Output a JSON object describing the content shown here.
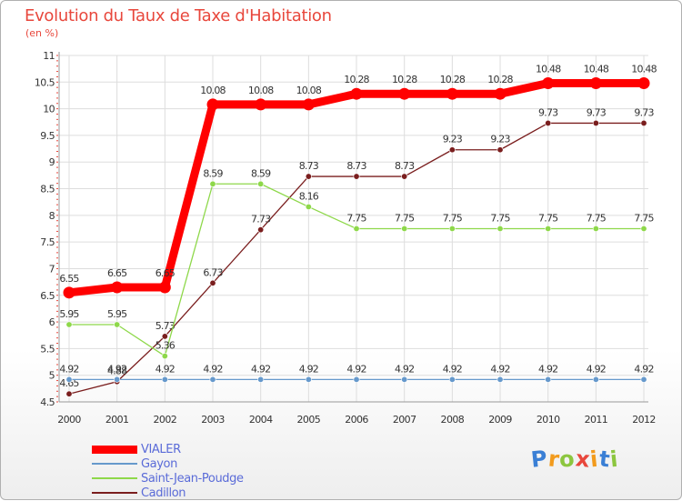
{
  "page": {
    "title": "Evolution du Taux de Taxe d'Habitation",
    "unit": "(en %)"
  },
  "chart_data": {
    "type": "line",
    "title": "Evolution du Taux de Taxe d'Habitation",
    "ylabel": "(en %)",
    "xlabel": "",
    "ylim": [
      4.5,
      11
    ],
    "y_ticks": [
      "4.5",
      "5",
      "5.5",
      "6",
      "6.5",
      "7",
      "7.5",
      "8",
      "8.5",
      "9",
      "9.5",
      "10",
      "10.5",
      "11"
    ],
    "y_tick_values": [
      4.5,
      5,
      5.5,
      6,
      6.5,
      7,
      7.5,
      8,
      8.5,
      9,
      9.5,
      10,
      10.5,
      11
    ],
    "categories": [
      "2000",
      "2001",
      "2002",
      "2003",
      "2004",
      "2005",
      "2006",
      "2007",
      "2008",
      "2009",
      "2010",
      "2011",
      "2012"
    ],
    "grid": true,
    "legend_position": "bottom-left",
    "series": [
      {
        "name": "Cadillon",
        "color": "#7a1e1e",
        "values": [
          4.65,
          4.88,
          5.73,
          6.73,
          7.73,
          8.73,
          8.73,
          8.73,
          9.23,
          9.23,
          9.73,
          9.73,
          9.73
        ],
        "labels": [
          "4.65",
          "4.88",
          "5.73",
          "6.73",
          "7.73",
          "8.73",
          "8.73",
          "8.73",
          "9.23",
          "9.23",
          "9.73",
          "9.73",
          "9.73"
        ]
      },
      {
        "name": "Saint-Jean-Poudge",
        "color": "#8ed84a",
        "values": [
          5.95,
          5.95,
          5.36,
          8.59,
          8.59,
          8.16,
          7.75,
          7.75,
          7.75,
          7.75,
          7.75,
          7.75,
          7.75
        ],
        "labels": [
          "5.95",
          "5.95",
          "5.36",
          "8.59",
          "8.59",
          "8.16",
          "7.75",
          "7.75",
          "7.75",
          "7.75",
          "7.75",
          "7.75",
          "7.75"
        ]
      },
      {
        "name": "Gayon",
        "color": "#6699cc",
        "values": [
          4.92,
          4.92,
          4.92,
          4.92,
          4.92,
          4.92,
          4.92,
          4.92,
          4.92,
          4.92,
          4.92,
          4.92,
          4.92
        ],
        "labels": [
          "4.92",
          "4.92",
          "4.92",
          "4.92",
          "4.92",
          "4.92",
          "4.92",
          "4.92",
          "4.92",
          "4.92",
          "4.92",
          "4.92",
          "4.92"
        ]
      },
      {
        "name": "VIALER",
        "color": "#ff0000",
        "values": [
          6.55,
          6.65,
          6.65,
          10.08,
          10.08,
          10.08,
          10.28,
          10.28,
          10.28,
          10.28,
          10.48,
          10.48,
          10.48
        ],
        "labels": [
          "6.55",
          "6.65",
          "6.65",
          "10.08",
          "10.08",
          "10.08",
          "10.28",
          "10.28",
          "10.28",
          "10.28",
          "10.48",
          "10.48",
          "10.48"
        ]
      }
    ]
  },
  "legend": {
    "items": [
      {
        "label": "VIALER",
        "color": "#ff0000"
      },
      {
        "label": "Gayon",
        "color": "#6699cc"
      },
      {
        "label": "Saint-Jean-Poudge",
        "color": "#8ed84a"
      },
      {
        "label": "Cadillon",
        "color": "#7a1e1e"
      }
    ]
  },
  "logo": {
    "text": "Proxiti",
    "letters": [
      "P",
      "r",
      "o",
      "x",
      "i",
      "t",
      "i"
    ],
    "colors": [
      "#3a7fd5",
      "#f29b1d",
      "#8cc63f",
      "#e8473c",
      "#f29b1d",
      "#3a7fd5",
      "#8cc63f"
    ]
  }
}
